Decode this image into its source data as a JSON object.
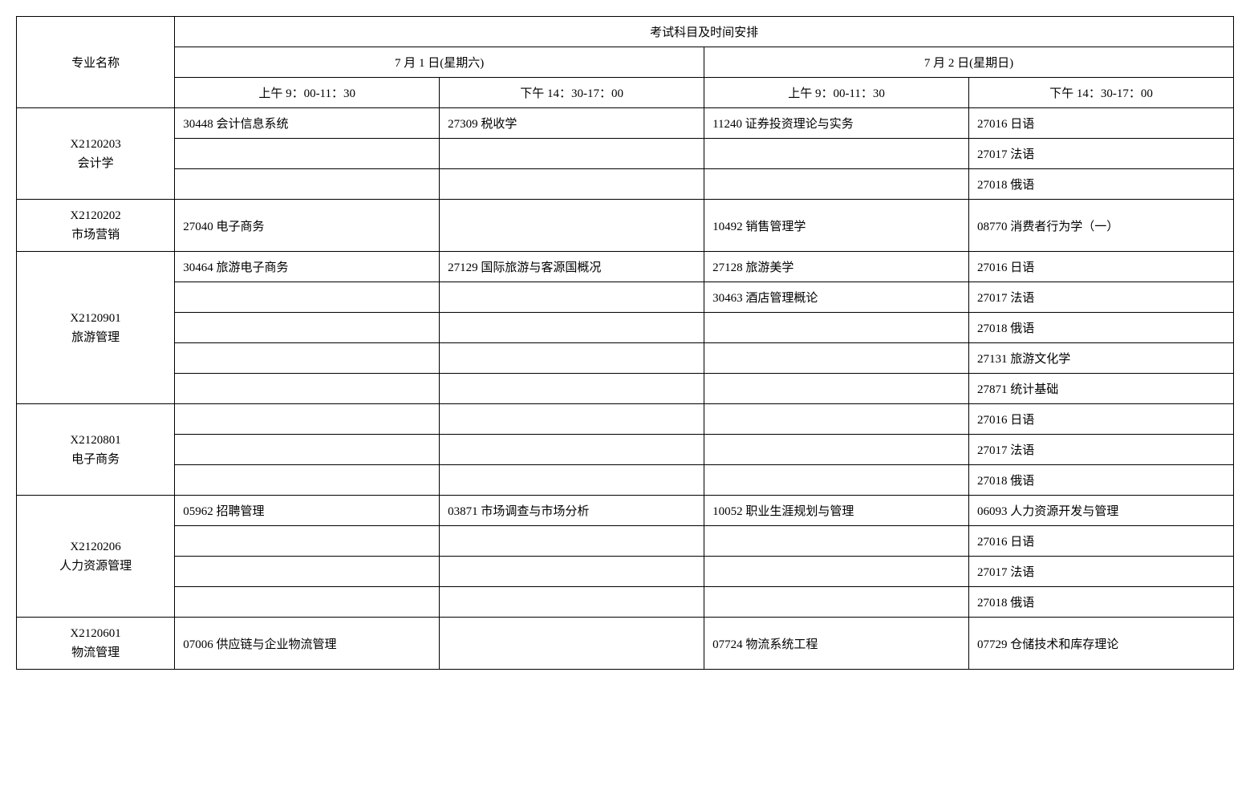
{
  "headers": {
    "major": "专业名称",
    "schedule": "考试科目及时间安排",
    "day1": "7 月 1 日(星期六)",
    "day2": "7 月 2 日(星期日)",
    "am": "上午 9：00-11：30",
    "pm": "下午 14：30-17：00"
  },
  "majors": [
    {
      "code": "X2120203",
      "name": "会计学",
      "rows": 3,
      "slots": [
        [
          "30448 会计信息系统",
          "",
          ""
        ],
        [
          "27309 税收学",
          "",
          ""
        ],
        [
          "11240 证券投资理论与实务",
          "",
          ""
        ],
        [
          "27016 日语",
          "27017 法语",
          "27018 俄语"
        ]
      ]
    },
    {
      "code": "X2120202",
      "name": "市场营销",
      "rows": 1,
      "slots": [
        [
          "27040 电子商务"
        ],
        [
          ""
        ],
        [
          "10492 销售管理学"
        ],
        [
          "08770 消费者行为学（一）"
        ]
      ]
    },
    {
      "code": "X2120901",
      "name": "旅游管理",
      "rows": 5,
      "slots": [
        [
          "30464 旅游电子商务",
          "",
          "",
          "",
          ""
        ],
        [
          "27129 国际旅游与客源国概况",
          "",
          "",
          "",
          ""
        ],
        [
          "27128 旅游美学",
          "30463 酒店管理概论",
          "",
          "",
          ""
        ],
        [
          "27016 日语",
          "27017 法语",
          "27018 俄语",
          "27131 旅游文化学",
          "27871 统计基础"
        ]
      ]
    },
    {
      "code": "X2120801",
      "name": "电子商务",
      "rows": 3,
      "slots": [
        [
          "",
          "",
          ""
        ],
        [
          "",
          "",
          ""
        ],
        [
          "",
          "",
          ""
        ],
        [
          "27016 日语",
          "27017 法语",
          "27018 俄语"
        ]
      ]
    },
    {
      "code": "X2120206",
      "name": "人力资源管理",
      "rows": 4,
      "slots": [
        [
          "05962 招聘管理",
          "",
          "",
          ""
        ],
        [
          "03871 市场调查与市场分析",
          "",
          "",
          ""
        ],
        [
          "10052 职业生涯规划与管理",
          "",
          "",
          ""
        ],
        [
          "06093 人力资源开发与管理",
          "27016 日语",
          "27017 法语",
          "27018 俄语"
        ]
      ]
    },
    {
      "code": "X2120601",
      "name": "物流管理",
      "rows": 1,
      "slots": [
        [
          "07006 供应链与企业物流管理"
        ],
        [
          ""
        ],
        [
          "07724 物流系统工程"
        ],
        [
          "07729 仓储技术和库存理论"
        ]
      ]
    }
  ],
  "style": {
    "border_color": "#000000",
    "background": "#ffffff",
    "text_color": "#000000",
    "font_family": "SimSun",
    "font_size_pt": 11
  }
}
